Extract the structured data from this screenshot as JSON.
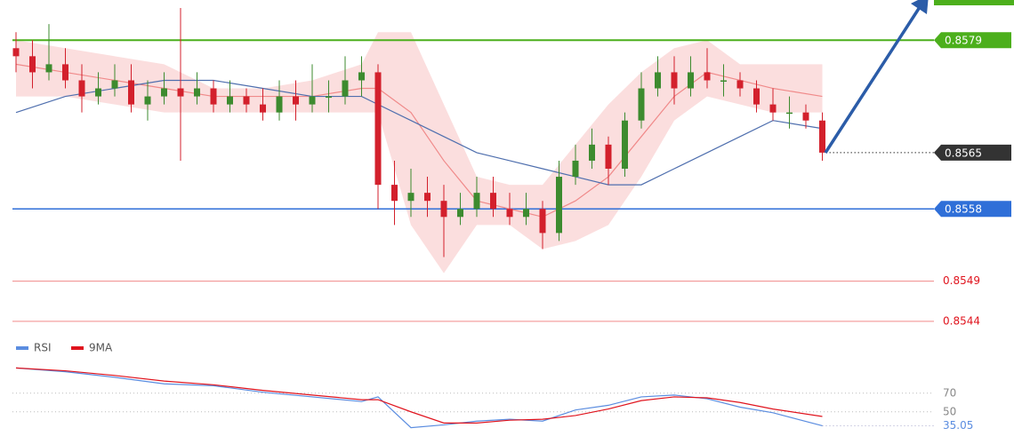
{
  "chart_data": [
    {
      "type": "candlestick",
      "xlim": [
        0,
        49
      ],
      "ylim": [
        0.8542,
        0.8584
      ],
      "up_color": "#3d8b2f",
      "down_color": "#d3202c",
      "open": [
        0.8578,
        0.8577,
        0.8575,
        0.8576,
        0.8574,
        0.8572,
        0.8573,
        0.8574,
        0.8571,
        0.8572,
        0.8573,
        0.8572,
        0.8573,
        0.8571,
        0.8572,
        0.8571,
        0.857,
        0.8572,
        0.8571,
        0.8572,
        0.8572,
        0.8574,
        0.8575,
        0.8561,
        0.8559,
        0.856,
        0.8559,
        0.8557,
        0.8558,
        0.856,
        0.8558,
        0.8557,
        0.8558,
        0.8555,
        0.8562,
        0.8564,
        0.8566,
        0.8563,
        0.8569,
        0.8573,
        0.8575,
        0.8573,
        0.8575,
        0.8574,
        0.8574,
        0.8573,
        0.8571,
        0.857,
        0.857,
        0.8569
      ],
      "high": [
        0.858,
        0.8579,
        0.8581,
        0.8578,
        0.8576,
        0.8575,
        0.8576,
        0.8576,
        0.8574,
        0.8575,
        0.8583,
        0.8575,
        0.8574,
        0.8574,
        0.8573,
        0.8573,
        0.8574,
        0.8574,
        0.8576,
        0.8574,
        0.8577,
        0.8577,
        0.8576,
        0.8564,
        0.8563,
        0.8562,
        0.8561,
        0.856,
        0.8562,
        0.8562,
        0.856,
        0.856,
        0.8559,
        0.8564,
        0.8566,
        0.8568,
        0.8567,
        0.857,
        0.8575,
        0.8577,
        0.8577,
        0.8577,
        0.8578,
        0.8576,
        0.8575,
        0.8574,
        0.8573,
        0.8572,
        0.8571,
        0.857
      ],
      "low": [
        0.8575,
        0.8573,
        0.8574,
        0.8573,
        0.857,
        0.8571,
        0.8572,
        0.857,
        0.8569,
        0.8571,
        0.8564,
        0.8571,
        0.857,
        0.857,
        0.857,
        0.8569,
        0.8569,
        0.8569,
        0.857,
        0.857,
        0.8571,
        0.8572,
        0.8558,
        0.8556,
        0.8557,
        0.8557,
        0.8552,
        0.8556,
        0.8557,
        0.8557,
        0.8556,
        0.8556,
        0.8553,
        0.8554,
        0.8561,
        0.8563,
        0.8561,
        0.8562,
        0.8568,
        0.8572,
        0.8571,
        0.8572,
        0.8573,
        0.8572,
        0.8572,
        0.857,
        0.8569,
        0.8568,
        0.8568,
        0.8564
      ],
      "close": [
        0.8577,
        0.8575,
        0.8576,
        0.8574,
        0.8572,
        0.8573,
        0.8574,
        0.8571,
        0.8572,
        0.8573,
        0.8572,
        0.8573,
        0.8571,
        0.8572,
        0.8571,
        0.857,
        0.8572,
        0.8571,
        0.8572,
        0.8572,
        0.8574,
        0.8575,
        0.8561,
        0.8559,
        0.856,
        0.8559,
        0.8557,
        0.8558,
        0.856,
        0.8558,
        0.8557,
        0.8558,
        0.8555,
        0.8562,
        0.8564,
        0.8566,
        0.8563,
        0.8569,
        0.8573,
        0.8575,
        0.8573,
        0.8575,
        0.8574,
        0.8574,
        0.8573,
        0.8571,
        0.857,
        0.857,
        0.8569,
        0.8565
      ],
      "overlay_x": [
        0,
        3,
        6,
        9,
        12,
        15,
        18,
        21,
        22,
        24,
        26,
        28,
        30,
        32,
        34,
        36,
        38,
        40,
        42,
        44,
        46,
        49
      ],
      "bands": {
        "color": "#f9d3d3",
        "upper": [
          0.8579,
          0.8578,
          0.8577,
          0.8576,
          0.8573,
          0.8573,
          0.8574,
          0.8576,
          0.858,
          0.858,
          0.8571,
          0.8562,
          0.8561,
          0.8561,
          0.8566,
          0.8571,
          0.8575,
          0.8578,
          0.8579,
          0.8576,
          0.8576,
          0.8576
        ],
        "lower": [
          0.8572,
          0.8572,
          0.8571,
          0.857,
          0.857,
          0.857,
          0.857,
          0.857,
          0.857,
          0.8556,
          0.855,
          0.8556,
          0.8556,
          0.8553,
          0.8554,
          0.8556,
          0.8562,
          0.8569,
          0.8572,
          0.8571,
          0.857,
          0.857
        ]
      },
      "lines": [
        {
          "color": "#f08a8a",
          "values": [
            0.8576,
            0.8575,
            0.8574,
            0.8573,
            0.8572,
            0.8572,
            0.8572,
            0.8573,
            0.8573,
            0.857,
            0.8564,
            0.8559,
            0.8558,
            0.8557,
            0.8559,
            0.8562,
            0.8567,
            0.8572,
            0.8575,
            0.8574,
            0.8573,
            0.8572
          ]
        },
        {
          "color": "#4f6fae",
          "values": [
            0.857,
            0.8572,
            0.8573,
            0.8574,
            0.8574,
            0.8573,
            0.8572,
            0.8572,
            0.8571,
            0.8569,
            0.8567,
            0.8565,
            0.8564,
            0.8563,
            0.8562,
            0.8561,
            0.8561,
            0.8563,
            0.8565,
            0.8567,
            0.8569,
            0.8568
          ]
        }
      ],
      "levels": [
        {
          "value": 0.8579,
          "color": "#4caf1c",
          "boxed": true
        },
        {
          "value": 0.8558,
          "color": "#2f6fd8",
          "boxed": true
        },
        {
          "value": 0.8549,
          "color": "#f08a8a",
          "boxed": false
        },
        {
          "value": 0.8544,
          "color": "#f08a8a",
          "boxed": false
        }
      ],
      "last_color": "#333333"
    },
    {
      "type": "line",
      "xlim": [
        0,
        49
      ],
      "ylim": [
        25,
        105
      ],
      "yticks": [
        70,
        50
      ],
      "x": [
        0,
        3,
        6,
        9,
        12,
        15,
        18,
        21,
        22,
        24,
        26,
        28,
        30,
        32,
        34,
        36,
        38,
        40,
        42,
        44,
        46,
        49
      ],
      "series": [
        {
          "name": "RSI",
          "color": "#5b8de0",
          "values": [
            97,
            93,
            87,
            80,
            78,
            71,
            66,
            61,
            66,
            33,
            36,
            40,
            42,
            40,
            52,
            57,
            66,
            68,
            64,
            55,
            49,
            35.05
          ]
        },
        {
          "name": "9MA",
          "color": "#e0141e",
          "values": [
            97,
            94,
            89,
            83,
            79,
            73,
            68,
            63,
            63,
            50,
            38,
            38,
            41,
            42,
            46,
            53,
            62,
            66,
            65,
            60,
            53,
            45
          ]
        }
      ]
    }
  ]
}
